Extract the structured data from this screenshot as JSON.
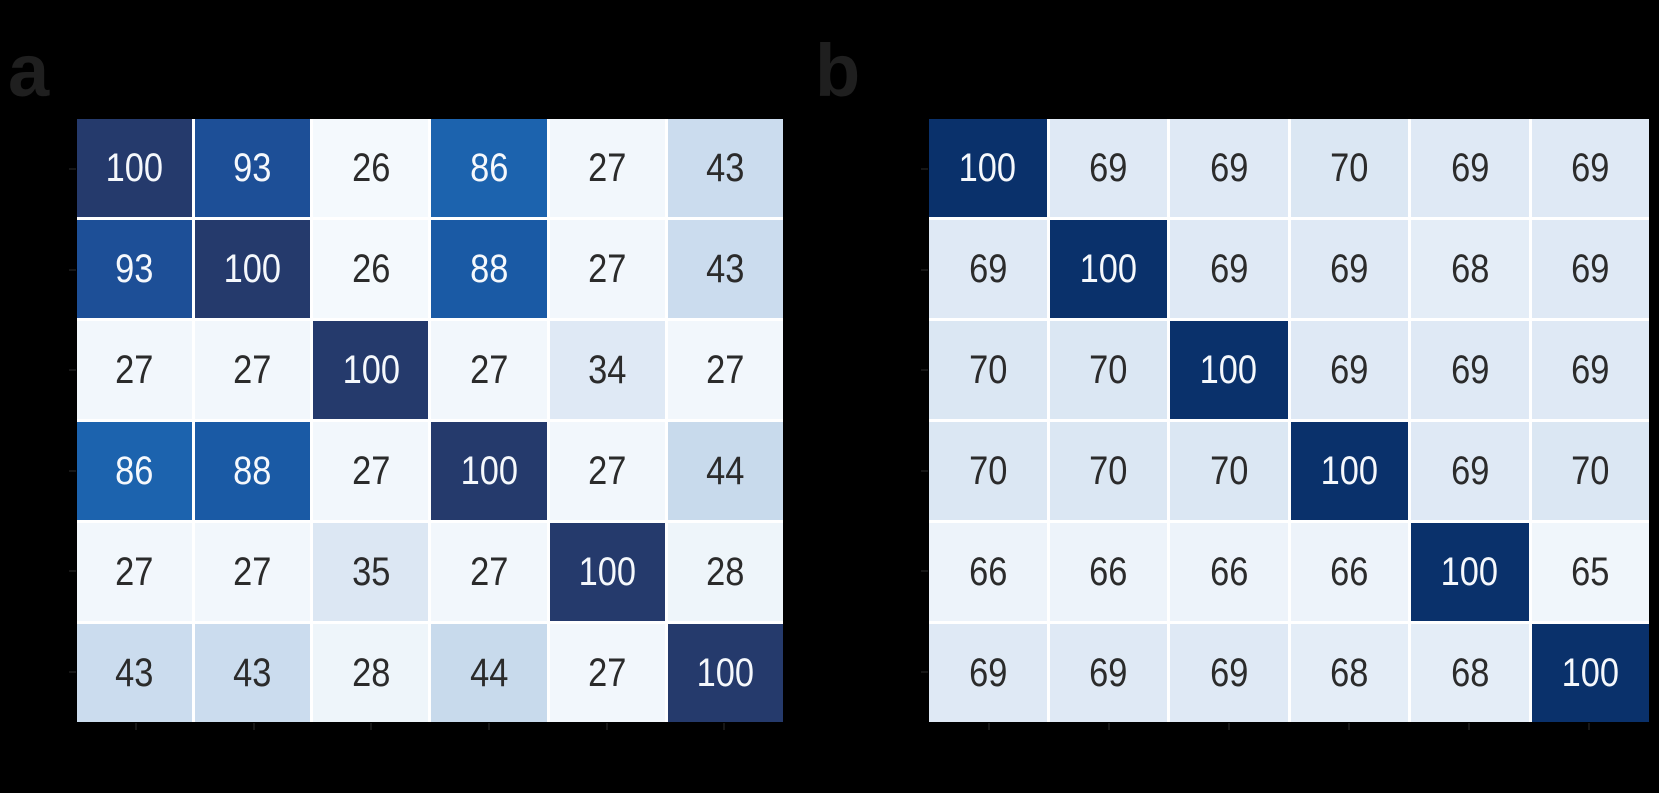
{
  "figure": {
    "panels": [
      {
        "label": "a"
      },
      {
        "label": "b"
      }
    ]
  },
  "style": {
    "background": "#000000",
    "panel_label_color": "#1f1f1f",
    "gridline_color": "#ffffff",
    "tick_color": "#161616",
    "cell_text_dark": "#2b2b2b",
    "cell_text_light": "#f5f8fc"
  },
  "chart_data": [
    {
      "type": "heatmap",
      "panel": "a",
      "title": "",
      "rows": 6,
      "cols": 6,
      "values": [
        [
          100,
          93,
          26,
          86,
          27,
          43
        ],
        [
          93,
          100,
          26,
          88,
          27,
          43
        ],
        [
          27,
          27,
          100,
          27,
          34,
          27
        ],
        [
          86,
          88,
          27,
          100,
          27,
          44
        ],
        [
          27,
          27,
          35,
          27,
          100,
          28
        ],
        [
          43,
          43,
          28,
          44,
          27,
          100
        ]
      ],
      "value_colors": {
        "26": "#f4f9fd",
        "27": "#f2f7fc",
        "28": "#eef5fa",
        "34": "#dfe9f5",
        "35": "#dce7f3",
        "43": "#cbdcee",
        "44": "#c8daec",
        "86": "#1c63ae",
        "88": "#1a5aa5",
        "93": "#1d4f97",
        "100": "#253a6c"
      },
      "white_text_min": 86,
      "cell_labels_visible": true,
      "tick_labels_visible": false,
      "x_ticks": 6,
      "y_ticks": 6,
      "grid_on": true,
      "legend": "none"
    },
    {
      "type": "heatmap",
      "panel": "b",
      "title": "",
      "rows": 6,
      "cols": 6,
      "values": [
        [
          100,
          69,
          69,
          70,
          69,
          69
        ],
        [
          69,
          100,
          69,
          69,
          68,
          69
        ],
        [
          70,
          70,
          100,
          69,
          69,
          69
        ],
        [
          70,
          70,
          70,
          100,
          69,
          70
        ],
        [
          66,
          66,
          66,
          66,
          100,
          65
        ],
        [
          69,
          69,
          69,
          68,
          68,
          100
        ]
      ],
      "value_colors": {
        "65": "#f0f6fb",
        "66": "#edf3fa",
        "68": "#e4edf7",
        "69": "#dfe9f5",
        "70": "#dbe7f3",
        "100": "#0a316b"
      },
      "white_text_min": 100,
      "cell_labels_visible": true,
      "tick_labels_visible": false,
      "x_ticks": 6,
      "y_ticks": 6,
      "grid_on": true,
      "legend": "none"
    }
  ]
}
